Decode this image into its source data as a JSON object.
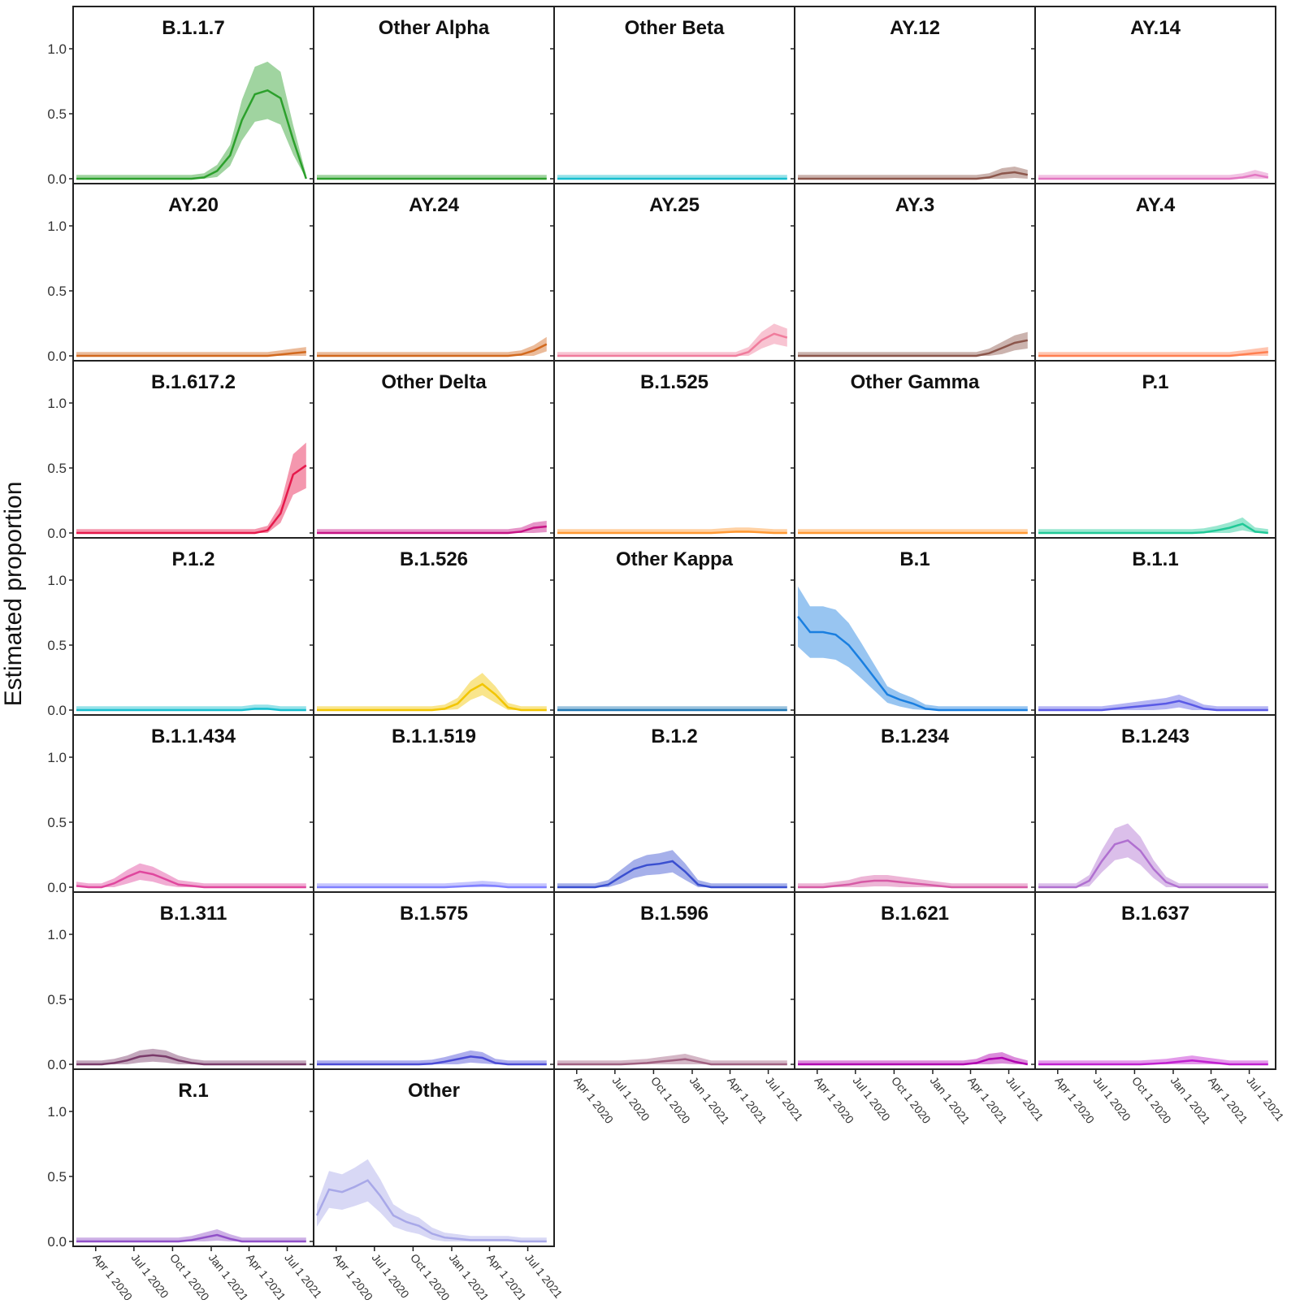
{
  "chart_data": {
    "type": "area",
    "ylabel": "Estimated proportion",
    "xlabel": "",
    "ylim": [
      0,
      1.1
    ],
    "yticks": [
      "0.0",
      "0.5",
      "1.0"
    ],
    "xticks": [
      "Apr 1 2020",
      "Jul 1 2020",
      "Oct 1 2020",
      "Jan 1 2021",
      "Apr 1 2021",
      "Jul 1 2021"
    ],
    "x_dates": [
      "2020-02-15",
      "2020-03-15",
      "2020-04-15",
      "2020-05-15",
      "2020-06-15",
      "2020-07-15",
      "2020-08-15",
      "2020-09-15",
      "2020-10-15",
      "2020-11-15",
      "2020-12-15",
      "2021-01-15",
      "2021-02-15",
      "2021-03-15",
      "2021-04-15",
      "2021-05-15",
      "2021-06-15",
      "2021-07-15",
      "2021-08-15"
    ],
    "grid": false,
    "panels": [
      {
        "title": "B.1.1.7",
        "color": "#2ca02c",
        "values": [
          0,
          0,
          0,
          0,
          0,
          0,
          0,
          0,
          0,
          0,
          0.01,
          0.06,
          0.18,
          0.45,
          0.65,
          0.68,
          0.62,
          0.3,
          0
        ]
      },
      {
        "title": "Other Alpha",
        "color": "#2ca02c",
        "values": [
          0,
          0,
          0,
          0,
          0,
          0,
          0,
          0,
          0,
          0,
          0,
          0,
          0,
          0,
          0,
          0,
          0,
          0,
          0
        ]
      },
      {
        "title": "Other Beta",
        "color": "#17becf",
        "values": [
          0,
          0,
          0,
          0,
          0,
          0,
          0,
          0,
          0,
          0,
          0,
          0,
          0,
          0,
          0,
          0,
          0,
          0,
          0
        ]
      },
      {
        "title": "AY.12",
        "color": "#8c564b",
        "values": [
          0,
          0,
          0,
          0,
          0,
          0,
          0,
          0,
          0,
          0,
          0,
          0,
          0,
          0,
          0,
          0.01,
          0.04,
          0.05,
          0.03
        ]
      },
      {
        "title": "AY.14",
        "color": "#e377c2",
        "values": [
          0,
          0,
          0,
          0,
          0,
          0,
          0,
          0,
          0,
          0,
          0,
          0,
          0,
          0,
          0,
          0,
          0.01,
          0.03,
          0.01
        ]
      },
      {
        "title": "AY.20",
        "color": "#d2691e",
        "values": [
          0,
          0,
          0,
          0,
          0,
          0,
          0,
          0,
          0,
          0,
          0,
          0,
          0,
          0,
          0,
          0,
          0.01,
          0.02,
          0.03
        ]
      },
      {
        "title": "AY.24",
        "color": "#d2691e",
        "values": [
          0,
          0,
          0,
          0,
          0,
          0,
          0,
          0,
          0,
          0,
          0,
          0,
          0,
          0,
          0,
          0,
          0.01,
          0.04,
          0.09
        ]
      },
      {
        "title": "AY.25",
        "color": "#f07c9c",
        "values": [
          0,
          0,
          0,
          0,
          0,
          0,
          0,
          0,
          0,
          0,
          0,
          0,
          0,
          0,
          0,
          0.03,
          0.12,
          0.17,
          0.14
        ]
      },
      {
        "title": "AY.3",
        "color": "#8c564b",
        "values": [
          0,
          0,
          0,
          0,
          0,
          0,
          0,
          0,
          0,
          0,
          0,
          0,
          0,
          0,
          0,
          0.02,
          0.06,
          0.1,
          0.12
        ]
      },
      {
        "title": "AY.4",
        "color": "#ff7f50",
        "values": [
          0,
          0,
          0,
          0,
          0,
          0,
          0,
          0,
          0,
          0,
          0,
          0,
          0,
          0,
          0,
          0,
          0.01,
          0.02,
          0.03
        ]
      },
      {
        "title": "B.1.617.2",
        "color": "#e6194b",
        "values": [
          0,
          0,
          0,
          0,
          0,
          0,
          0,
          0,
          0,
          0,
          0,
          0,
          0,
          0,
          0,
          0.02,
          0.15,
          0.45,
          0.52
        ]
      },
      {
        "title": "Other Delta",
        "color": "#c71585",
        "values": [
          0,
          0,
          0,
          0,
          0,
          0,
          0,
          0,
          0,
          0,
          0,
          0,
          0,
          0,
          0,
          0,
          0.01,
          0.04,
          0.05
        ]
      },
      {
        "title": "B.1.525",
        "color": "#ff9933",
        "values": [
          0,
          0,
          0,
          0,
          0,
          0,
          0,
          0,
          0,
          0,
          0,
          0,
          0,
          0.005,
          0.01,
          0.01,
          0.005,
          0,
          0
        ]
      },
      {
        "title": "Other Gamma",
        "color": "#ff9933",
        "values": [
          0,
          0,
          0,
          0,
          0,
          0,
          0,
          0,
          0,
          0,
          0,
          0,
          0,
          0,
          0,
          0,
          0,
          0,
          0
        ]
      },
      {
        "title": "P.1",
        "color": "#20c997",
        "values": [
          0,
          0,
          0,
          0,
          0,
          0,
          0,
          0,
          0,
          0,
          0,
          0,
          0,
          0.005,
          0.02,
          0.04,
          0.07,
          0.01,
          0
        ]
      },
      {
        "title": "P.1.2",
        "color": "#17becf",
        "values": [
          0,
          0,
          0,
          0,
          0,
          0,
          0,
          0,
          0,
          0,
          0,
          0,
          0,
          0,
          0.01,
          0.01,
          0,
          0,
          0
        ]
      },
      {
        "title": "B.1.526",
        "color": "#f2c500",
        "values": [
          0,
          0,
          0,
          0,
          0,
          0,
          0,
          0,
          0,
          0,
          0.01,
          0.05,
          0.15,
          0.2,
          0.12,
          0.02,
          0,
          0,
          0
        ]
      },
      {
        "title": "Other Kappa",
        "color": "#1f77b4",
        "values": [
          0,
          0,
          0,
          0,
          0,
          0,
          0,
          0,
          0,
          0,
          0,
          0,
          0,
          0,
          0,
          0,
          0,
          0,
          0
        ]
      },
      {
        "title": "B.1",
        "color": "#1a7fe0",
        "values": [
          0.72,
          0.6,
          0.6,
          0.58,
          0.5,
          0.38,
          0.25,
          0.12,
          0.08,
          0.05,
          0.01,
          0,
          0,
          0,
          0,
          0,
          0,
          0,
          0
        ]
      },
      {
        "title": "B.1.1",
        "color": "#5a5ae6",
        "values": [
          0,
          0,
          0,
          0,
          0,
          0,
          0.01,
          0.02,
          0.03,
          0.04,
          0.05,
          0.07,
          0.04,
          0.01,
          0,
          0,
          0,
          0,
          0
        ]
      },
      {
        "title": "B.1.1.434",
        "color": "#e0479e",
        "values": [
          0.01,
          0,
          0,
          0.03,
          0.08,
          0.12,
          0.1,
          0.06,
          0.02,
          0.01,
          0,
          0,
          0,
          0,
          0,
          0,
          0,
          0,
          0
        ]
      },
      {
        "title": "B.1.1.519",
        "color": "#8080ff",
        "values": [
          0,
          0,
          0,
          0,
          0,
          0,
          0,
          0,
          0,
          0,
          0,
          0.005,
          0.01,
          0.015,
          0.01,
          0,
          0,
          0,
          0
        ]
      },
      {
        "title": "B.1.2",
        "color": "#3a4fd0",
        "values": [
          0,
          0,
          0,
          0,
          0.02,
          0.08,
          0.14,
          0.17,
          0.18,
          0.2,
          0.12,
          0.02,
          0,
          0,
          0,
          0,
          0,
          0,
          0
        ]
      },
      {
        "title": "B.1.234",
        "color": "#d65aa5",
        "values": [
          0,
          0,
          0,
          0.01,
          0.02,
          0.04,
          0.05,
          0.05,
          0.04,
          0.03,
          0.02,
          0.01,
          0,
          0,
          0,
          0,
          0,
          0,
          0
        ]
      },
      {
        "title": "B.1.243",
        "color": "#b070d0",
        "values": [
          0,
          0,
          0,
          0,
          0.05,
          0.2,
          0.33,
          0.36,
          0.28,
          0.14,
          0.04,
          0,
          0,
          0,
          0,
          0,
          0,
          0,
          0
        ]
      },
      {
        "title": "B.1.311",
        "color": "#7a3b6a",
        "values": [
          0,
          0,
          0,
          0.01,
          0.03,
          0.06,
          0.07,
          0.06,
          0.03,
          0.01,
          0,
          0,
          0,
          0,
          0,
          0,
          0,
          0,
          0
        ]
      },
      {
        "title": "B.1.575",
        "color": "#4b4bd6",
        "values": [
          0,
          0,
          0,
          0,
          0,
          0,
          0,
          0,
          0,
          0.005,
          0.02,
          0.04,
          0.06,
          0.05,
          0.01,
          0,
          0,
          0,
          0
        ]
      },
      {
        "title": "B.1.596",
        "color": "#a06080",
        "values": [
          0,
          0,
          0,
          0,
          0,
          0,
          0.005,
          0.01,
          0.02,
          0.03,
          0.04,
          0.02,
          0,
          0,
          0,
          0,
          0,
          0,
          0
        ]
      },
      {
        "title": "B.1.621",
        "color": "#b000b0",
        "values": [
          0,
          0,
          0,
          0,
          0,
          0,
          0,
          0,
          0,
          0,
          0,
          0,
          0,
          0,
          0.01,
          0.04,
          0.05,
          0.02,
          0
        ]
      },
      {
        "title": "B.1.637",
        "color": "#c020d0",
        "values": [
          0,
          0,
          0,
          0,
          0,
          0,
          0,
          0,
          0,
          0.005,
          0.01,
          0.02,
          0.03,
          0.02,
          0.01,
          0,
          0,
          0,
          0
        ]
      },
      {
        "title": "R.1",
        "color": "#9050c8",
        "values": [
          0,
          0,
          0,
          0,
          0,
          0,
          0,
          0,
          0,
          0.01,
          0.03,
          0.05,
          0.02,
          0,
          0,
          0,
          0,
          0,
          0
        ]
      },
      {
        "title": "Other",
        "color": "#a8a8e8",
        "values": [
          0.2,
          0.4,
          0.38,
          0.42,
          0.47,
          0.35,
          0.2,
          0.15,
          0.12,
          0.06,
          0.03,
          0.02,
          0.01,
          0.01,
          0.01,
          0.01,
          0,
          0,
          0
        ]
      }
    ]
  }
}
